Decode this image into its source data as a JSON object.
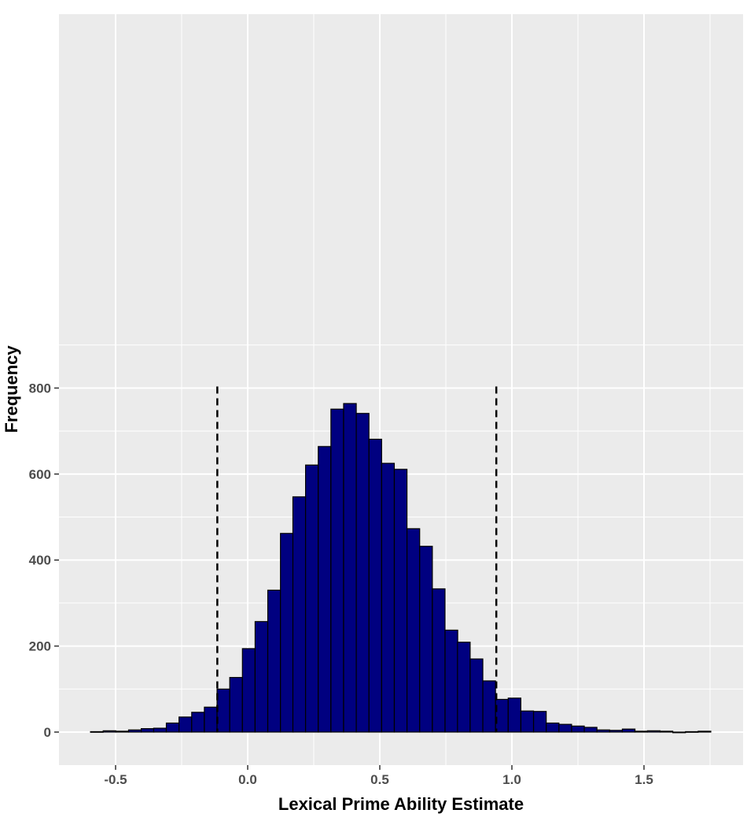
{
  "chart_data": {
    "type": "bar",
    "title": "",
    "xlabel": "Lexical Prime Ability Estimate",
    "ylabel": "Frequency",
    "xlim": [
      -0.72,
      1.88
    ],
    "ylim": [
      -40,
      840
    ],
    "x_ticks": [
      -0.5,
      0.0,
      0.5,
      1.0,
      1.5
    ],
    "x_tick_labels": [
      "-0.5",
      "0.0",
      "0.5",
      "1.0",
      "1.5"
    ],
    "y_ticks": [
      0,
      200,
      400,
      600,
      800
    ],
    "y_tick_labels": [
      "0",
      "200",
      "400",
      "600",
      "800"
    ],
    "bin_width": 0.0479,
    "bin_centers": [
      -0.571,
      -0.523,
      -0.475,
      -0.427,
      -0.379,
      -0.332,
      -0.284,
      -0.236,
      -0.188,
      -0.14,
      -0.092,
      -0.044,
      0.004,
      0.052,
      0.1,
      0.148,
      0.195,
      0.243,
      0.291,
      0.339,
      0.387,
      0.435,
      0.483,
      0.531,
      0.579,
      0.627,
      0.675,
      0.723,
      0.771,
      0.818,
      0.866,
      0.914,
      0.962,
      1.01,
      1.058,
      1.106,
      1.154,
      1.202,
      1.25,
      1.298,
      1.346,
      1.394,
      1.442,
      1.489,
      1.537,
      1.585,
      1.633,
      1.681,
      1.729
    ],
    "values": [
      1,
      3,
      2,
      5,
      8,
      9,
      21,
      35,
      46,
      58,
      100,
      127,
      194,
      257,
      330,
      462,
      547,
      621,
      664,
      751,
      764,
      741,
      681,
      625,
      611,
      473,
      432,
      333,
      237,
      209,
      170,
      119,
      76,
      79,
      49,
      48,
      21,
      18,
      14,
      11,
      5,
      4,
      7,
      2,
      3,
      2,
      0,
      1,
      2
    ],
    "bar_fill": "#000080",
    "bar_outline": "#000000",
    "vlines": [
      -0.115,
      0.941
    ],
    "vline_style": "dashed",
    "panel_background": "#ebebeb",
    "grid": true,
    "grid_color": "#ffffff"
  }
}
